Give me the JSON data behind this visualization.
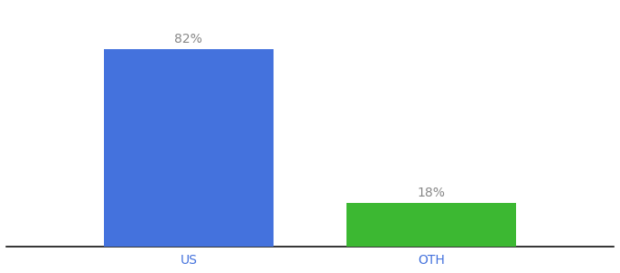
{
  "categories": [
    "US",
    "OTH"
  ],
  "values": [
    82,
    18
  ],
  "bar_colors": [
    "#4472dd",
    "#3cb832"
  ],
  "labels": [
    "82%",
    "18%"
  ],
  "background_color": "#ffffff",
  "ylim": [
    0,
    100
  ],
  "bar_width": 0.28,
  "label_fontsize": 10,
  "tick_fontsize": 10,
  "tick_color": "#4472dd",
  "label_color": "#888888"
}
